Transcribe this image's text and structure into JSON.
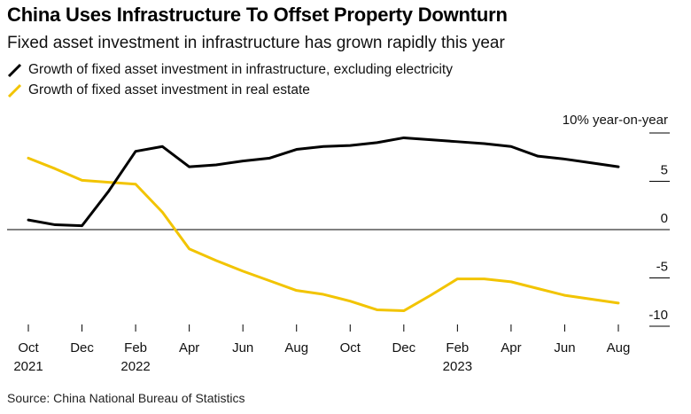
{
  "title": "China Uses Infrastructure To Offset Property Downturn",
  "subtitle": "Fixed asset investment in infrastructure has grown rapidly this year",
  "source": "Source: China National Bureau of Statistics",
  "colors": {
    "infrastructure": "#000000",
    "real_estate": "#f2c400",
    "zero_line": "#000000",
    "ticks": "#000000"
  },
  "chart_data": {
    "type": "line",
    "title": "China Uses Infrastructure To Offset Property Downturn",
    "subtitle": "Fixed asset investment in infrastructure has grown rapidly this year",
    "ylabel": "10% year-on-year",
    "ylim": [
      -10,
      10
    ],
    "y_ticks": [
      10,
      5,
      0,
      -5,
      -10
    ],
    "y_tick_labels": [
      "",
      "5",
      "0",
      "-5",
      "-10"
    ],
    "y_unit_label": "10% year-on-year",
    "x_ticks": [
      {
        "idx": 0,
        "label": "Oct",
        "year": "2021"
      },
      {
        "idx": 2,
        "label": "Dec",
        "year": ""
      },
      {
        "idx": 4,
        "label": "Feb",
        "year": "2022"
      },
      {
        "idx": 6,
        "label": "Apr",
        "year": ""
      },
      {
        "idx": 8,
        "label": "Jun",
        "year": ""
      },
      {
        "idx": 10,
        "label": "Aug",
        "year": ""
      },
      {
        "idx": 12,
        "label": "Oct",
        "year": ""
      },
      {
        "idx": 14,
        "label": "Dec",
        "year": ""
      },
      {
        "idx": 16,
        "label": "Feb",
        "year": "2023"
      },
      {
        "idx": 18,
        "label": "Apr",
        "year": ""
      },
      {
        "idx": 20,
        "label": "Jun",
        "year": ""
      },
      {
        "idx": 22,
        "label": "Aug",
        "year": ""
      }
    ],
    "x_range": [
      0,
      22
    ],
    "series": [
      {
        "name": "Growth of fixed asset investment in infrastructure, excluding electricity",
        "color": "#000000",
        "points": [
          [
            0,
            1.0
          ],
          [
            1,
            0.5
          ],
          [
            2,
            0.4
          ],
          [
            3,
            4.0
          ],
          [
            4,
            8.1
          ],
          [
            5,
            8.6
          ],
          [
            6,
            6.5
          ],
          [
            7,
            6.7
          ],
          [
            8,
            7.1
          ],
          [
            9,
            7.4
          ],
          [
            10,
            8.3
          ],
          [
            11,
            8.6
          ],
          [
            12,
            8.7
          ],
          [
            13,
            9.0
          ],
          [
            14,
            9.5
          ],
          [
            15,
            9.3
          ],
          [
            16,
            9.1
          ],
          [
            17,
            8.9
          ],
          [
            18,
            8.6
          ],
          [
            19,
            7.6
          ],
          [
            20,
            7.3
          ],
          [
            21,
            6.9
          ],
          [
            22,
            6.5
          ]
        ]
      },
      {
        "name": "Growth of fixed asset investment in real estate",
        "color": "#f2c400",
        "points": [
          [
            0,
            7.4
          ],
          [
            1,
            6.3
          ],
          [
            2,
            5.1
          ],
          [
            3,
            4.9
          ],
          [
            4,
            4.7
          ],
          [
            5,
            1.8
          ],
          [
            6,
            -2.0
          ],
          [
            7,
            -3.2
          ],
          [
            8,
            -4.3
          ],
          [
            9,
            -5.3
          ],
          [
            10,
            -6.3
          ],
          [
            11,
            -6.7
          ],
          [
            12,
            -7.4
          ],
          [
            13,
            -8.3
          ],
          [
            14,
            -8.4
          ],
          [
            15,
            -6.8
          ],
          [
            16,
            -5.1
          ],
          [
            17,
            -5.1
          ],
          [
            18,
            -5.4
          ],
          [
            19,
            -6.1
          ],
          [
            20,
            -6.8
          ],
          [
            21,
            -7.2
          ],
          [
            22,
            -7.6
          ]
        ]
      }
    ]
  }
}
